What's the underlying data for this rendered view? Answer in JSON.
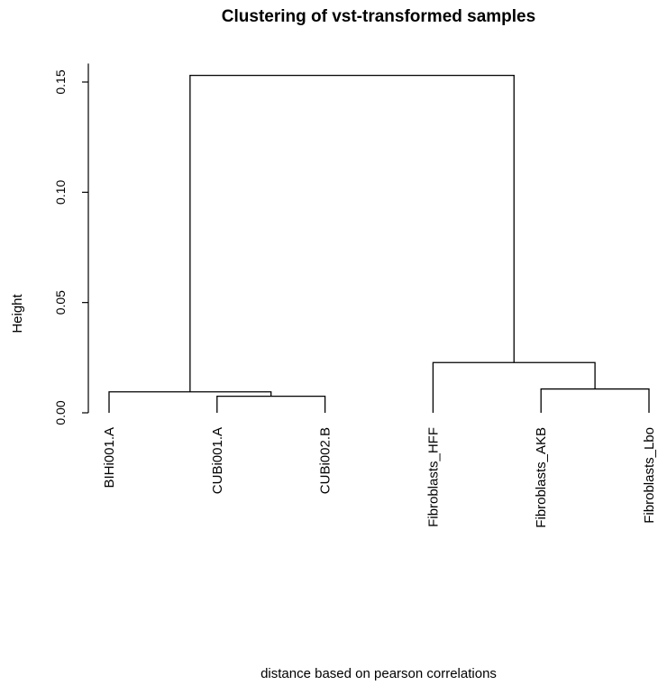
{
  "chart_data": {
    "type": "dendrogram",
    "title": "Clustering of vst-transformed samples",
    "xlabel": "distance based on pearson correlations",
    "ylabel": "Height",
    "ylim": [
      0,
      0.16
    ],
    "y_ticks": [
      0.0,
      0.05,
      0.1,
      0.15
    ],
    "y_tick_labels": [
      "0.00",
      "0.05",
      "0.10",
      "0.15"
    ],
    "leaves": [
      "BIHi001.A",
      "CUBi001.A",
      "CUBi002.B",
      "Fibroblasts_HFF",
      "Fibroblasts_AKB",
      "Fibroblasts_Lbo"
    ],
    "merges": [
      {
        "a": "leaf:1",
        "b": "leaf:2",
        "height": 0.0075
      },
      {
        "a": "leaf:0",
        "b": "node:0",
        "height": 0.0095
      },
      {
        "a": "leaf:4",
        "b": "leaf:5",
        "height": 0.0108
      },
      {
        "a": "leaf:3",
        "b": "node:2",
        "height": 0.0228
      },
      {
        "a": "node:1",
        "b": "node:3",
        "height": 0.153
      }
    ]
  }
}
